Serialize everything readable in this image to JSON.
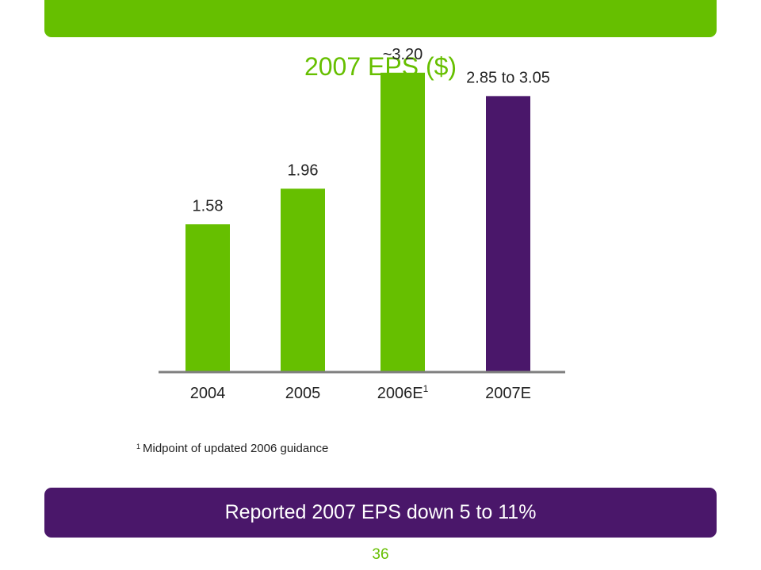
{
  "slide": {
    "title": "2007 EPS ($)",
    "footnote_marker": "1",
    "footnote_text": "Midpoint of updated 2006 guidance",
    "banner_text": "Reported 2007 EPS down 5 to 11%",
    "page_number": "36"
  },
  "colors": {
    "green": "#66bf00",
    "purple": "#4a176a",
    "axis": "#7f7f7f",
    "text": "#222222"
  },
  "chart_data": {
    "type": "bar",
    "title": "2007 EPS ($)",
    "categories": [
      "2004",
      "2005",
      "2006E",
      "2007E"
    ],
    "category_superscripts": [
      "",
      "",
      "1",
      ""
    ],
    "values": [
      1.58,
      1.96,
      3.2,
      2.95
    ],
    "data_labels": [
      "1.58",
      "1.96",
      "~3.20",
      "2.85 to 3.05"
    ],
    "bar_colors": [
      "#66bf00",
      "#66bf00",
      "#66bf00",
      "#4a176a"
    ],
    "xlabel": "",
    "ylabel": "",
    "ylim": [
      0,
      3.3
    ],
    "grid": false,
    "legend": "none"
  }
}
